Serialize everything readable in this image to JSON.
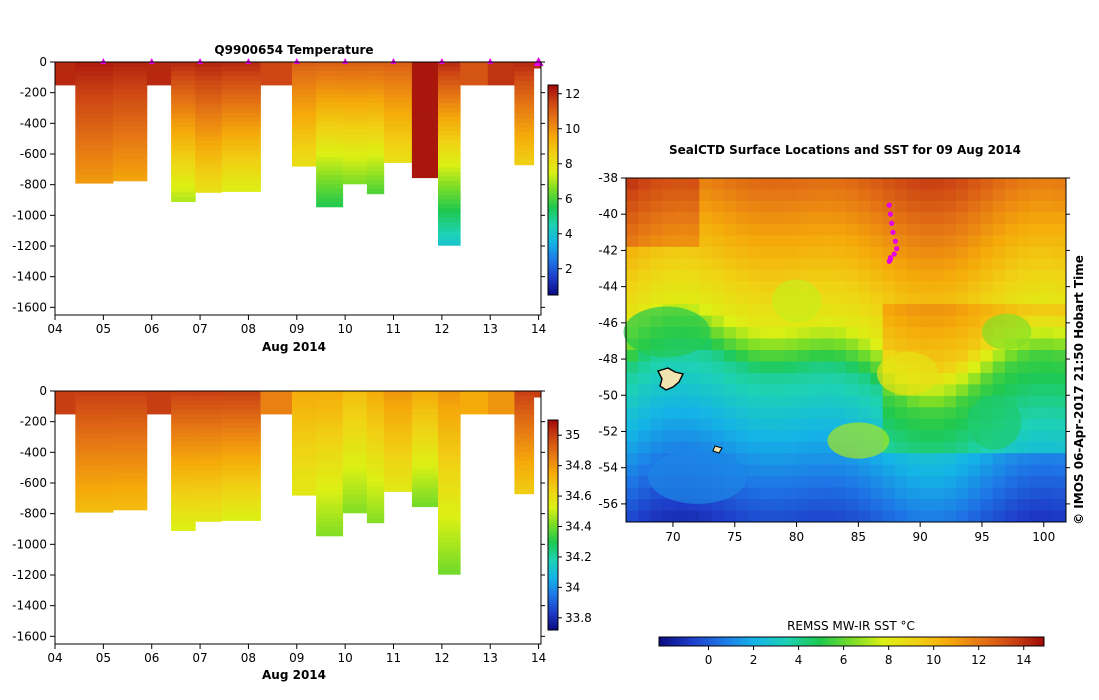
{
  "colors": {
    "ramp": [
      "#0a0a80",
      "#1e3cc8",
      "#1e78e6",
      "#14b4e6",
      "#1ed2b4",
      "#1ec850",
      "#78dc28",
      "#dcf014",
      "#f0d214",
      "#f5aa0a",
      "#e67814",
      "#cd4614",
      "#a00a0a"
    ]
  },
  "profile_axis": {
    "x_ticks": [
      "04",
      "05",
      "06",
      "07",
      "08",
      "09",
      "10",
      "11",
      "12",
      "13",
      "14"
    ],
    "x_label": "Aug 2014",
    "y_ticks": [
      "0",
      "-200",
      "-400",
      "-600",
      "-800",
      "-1000",
      "-1200",
      "-1400",
      "-1600"
    ],
    "ylim": [
      -1650,
      0
    ],
    "xlim": [
      4,
      14.05
    ]
  },
  "chart_data": [
    {
      "type": "heatmap",
      "title": "Q9900654  Temperature",
      "xlabel": "Aug 2014",
      "ylabel": "",
      "variable": "temperature",
      "colorbar": {
        "ticks": [
          "2",
          "4",
          "6",
          "8",
          "10",
          "12"
        ],
        "range": [
          0.5,
          12.5
        ]
      },
      "profiles": [
        {
          "x0": 4.0,
          "x1": 4.42,
          "depth": 150,
          "top": 12.0,
          "bottom": 12.0
        },
        {
          "x0": 4.42,
          "x1": 5.2,
          "depth": 790,
          "top": 12.2,
          "bottom": 9.8
        },
        {
          "x0": 5.2,
          "x1": 5.9,
          "depth": 775,
          "top": 12.1,
          "bottom": 9.6
        },
        {
          "x0": 5.9,
          "x1": 6.4,
          "depth": 150,
          "top": 12.0,
          "bottom": 12.0
        },
        {
          "x0": 6.4,
          "x1": 6.9,
          "depth": 910,
          "top": 12.0,
          "bottom": 7.0
        },
        {
          "x0": 6.9,
          "x1": 7.45,
          "depth": 850,
          "top": 12.1,
          "bottom": 8.0
        },
        {
          "x0": 7.45,
          "x1": 8.25,
          "depth": 845,
          "top": 12.0,
          "bottom": 7.5
        },
        {
          "x0": 8.25,
          "x1": 8.9,
          "depth": 150,
          "top": 11.5,
          "bottom": 11.5
        },
        {
          "x0": 8.9,
          "x1": 9.4,
          "depth": 680,
          "top": 11.0,
          "bottom": 8.0
        },
        {
          "x0": 9.4,
          "x1": 9.95,
          "depth": 945,
          "top": 11.0,
          "bottom": 5.5
        },
        {
          "x0": 9.95,
          "x1": 10.45,
          "depth": 795,
          "top": 11.0,
          "bottom": 6.5
        },
        {
          "x0": 10.45,
          "x1": 10.8,
          "depth": 860,
          "top": 11.0,
          "bottom": 6.0
        },
        {
          "x0": 10.8,
          "x1": 11.38,
          "depth": 655,
          "top": 11.0,
          "bottom": 8.0
        },
        {
          "x0": 11.38,
          "x1": 11.92,
          "depth": 755,
          "top": 12.3,
          "bottom": 12.3
        },
        {
          "x0": 11.92,
          "x1": 12.38,
          "depth": 1195,
          "top": 12.0,
          "bottom": 4.0
        },
        {
          "x0": 12.38,
          "x1": 12.95,
          "depth": 150,
          "top": 11.2,
          "bottom": 11.2
        },
        {
          "x0": 12.95,
          "x1": 13.5,
          "depth": 150,
          "top": 11.8,
          "bottom": 11.8
        },
        {
          "x0": 13.5,
          "x1": 13.9,
          "depth": 670,
          "top": 12.0,
          "bottom": 8.5
        },
        {
          "x0": 13.9,
          "x1": 14.05,
          "depth": 40,
          "top": 12.0,
          "bottom": 12.0
        }
      ],
      "markers": [
        5.0,
        6.0,
        7.0,
        8.0,
        9.0,
        10.0,
        11.0,
        12.0,
        13.0,
        14.0
      ]
    },
    {
      "type": "heatmap",
      "title": "",
      "xlabel": "Aug 2014",
      "ylabel": "",
      "variable": "salinity",
      "colorbar": {
        "ticks": [
          "33.8",
          "34",
          "34.2",
          "34.4",
          "34.6",
          "34.8",
          "35"
        ],
        "range": [
          33.72,
          35.1
        ]
      },
      "profiles": [
        {
          "x0": 4.0,
          "x1": 4.42,
          "depth": 150,
          "top": 35.0,
          "bottom": 35.0
        },
        {
          "x0": 4.42,
          "x1": 5.2,
          "depth": 790,
          "top": 35.0,
          "bottom": 34.7
        },
        {
          "x0": 5.2,
          "x1": 5.9,
          "depth": 775,
          "top": 35.0,
          "bottom": 34.7
        },
        {
          "x0": 5.9,
          "x1": 6.4,
          "depth": 150,
          "top": 35.0,
          "bottom": 35.0
        },
        {
          "x0": 6.4,
          "x1": 6.9,
          "depth": 910,
          "top": 35.0,
          "bottom": 34.52
        },
        {
          "x0": 6.9,
          "x1": 7.45,
          "depth": 850,
          "top": 35.0,
          "bottom": 34.55
        },
        {
          "x0": 7.45,
          "x1": 8.25,
          "depth": 845,
          "top": 35.0,
          "bottom": 34.52
        },
        {
          "x0": 8.25,
          "x1": 8.9,
          "depth": 150,
          "top": 34.85,
          "bottom": 34.85
        },
        {
          "x0": 8.9,
          "x1": 9.4,
          "depth": 680,
          "top": 34.75,
          "bottom": 34.55
        },
        {
          "x0": 9.4,
          "x1": 9.95,
          "depth": 945,
          "top": 34.75,
          "bottom": 34.42
        },
        {
          "x0": 9.95,
          "x1": 10.45,
          "depth": 795,
          "top": 34.7,
          "bottom": 34.42
        },
        {
          "x0": 10.45,
          "x1": 10.8,
          "depth": 860,
          "top": 34.75,
          "bottom": 34.42
        },
        {
          "x0": 10.8,
          "x1": 11.38,
          "depth": 655,
          "top": 34.8,
          "bottom": 34.55
        },
        {
          "x0": 11.38,
          "x1": 11.92,
          "depth": 755,
          "top": 34.75,
          "bottom": 34.4
        },
        {
          "x0": 11.92,
          "x1": 12.38,
          "depth": 1195,
          "top": 34.8,
          "bottom": 34.4
        },
        {
          "x0": 12.38,
          "x1": 12.95,
          "depth": 150,
          "top": 34.75,
          "bottom": 34.75
        },
        {
          "x0": 12.95,
          "x1": 13.5,
          "depth": 150,
          "top": 34.8,
          "bottom": 34.8
        },
        {
          "x0": 13.5,
          "x1": 13.9,
          "depth": 670,
          "top": 35.0,
          "bottom": 34.65
        },
        {
          "x0": 13.9,
          "x1": 14.05,
          "depth": 40,
          "top": 35.0,
          "bottom": 35.0
        }
      ],
      "markers": []
    },
    {
      "type": "heatmap",
      "title": "SealCTD Surface Locations and SST for 09 Aug 2014",
      "xlabel": "",
      "ylabel": "",
      "variable": "sst",
      "x_ticks": [
        "70",
        "75",
        "80",
        "85",
        "90",
        "95",
        "100"
      ],
      "y_ticks": [
        "-38",
        "-40",
        "-42",
        "-44",
        "-46",
        "-48",
        "-50",
        "-52",
        "-54",
        "-56"
      ],
      "xlim": [
        66.2,
        101.8
      ],
      "ylim": [
        -57.0,
        -38.0
      ],
      "colorbar": {
        "label": "REMSS MW-IR SST °C",
        "ticks": [
          "0",
          "2",
          "4",
          "6",
          "8",
          "10",
          "12",
          "14"
        ],
        "range": [
          -2.2,
          14.9
        ]
      },
      "side_label": "© IMOS 06-Apr-2017 21:50 Hobart Time",
      "surface_locations": [
        [
          87.5,
          -39.5
        ],
        [
          87.6,
          -40.0
        ],
        [
          87.7,
          -40.5
        ],
        [
          87.8,
          -41.0
        ],
        [
          88.0,
          -41.5
        ],
        [
          88.1,
          -41.9
        ],
        [
          87.9,
          -42.2
        ],
        [
          87.6,
          -42.4
        ],
        [
          87.5,
          -42.6
        ],
        [
          87.6,
          -42.5
        ]
      ]
    }
  ]
}
